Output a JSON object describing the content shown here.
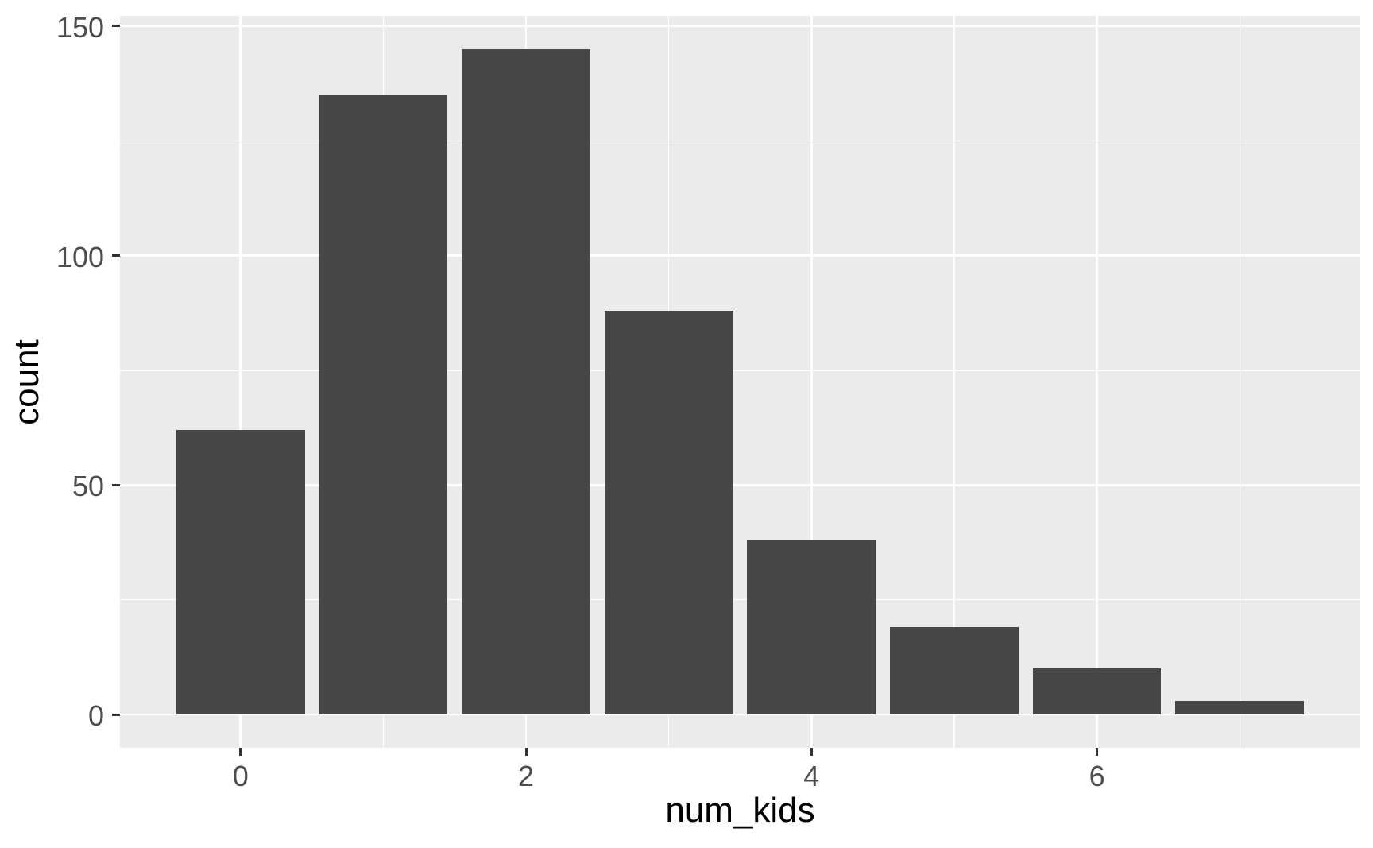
{
  "chart_data": {
    "type": "bar",
    "title": "",
    "xlabel": "num_kids",
    "ylabel": "count",
    "x": [
      0,
      1,
      2,
      3,
      4,
      5,
      6,
      7
    ],
    "values": [
      62,
      135,
      145,
      88,
      38,
      19,
      10,
      3
    ],
    "bar_width": 0.9,
    "xlim": [
      -0.845,
      7.845
    ],
    "ylim": [
      -7.25,
      152.25
    ],
    "x_major_ticks": [
      0,
      2,
      4,
      6
    ],
    "x_tick_labels": [
      "0",
      "2",
      "4",
      "6"
    ],
    "x_minor_gridlines": [
      1,
      3,
      5,
      7
    ],
    "y_major_ticks": [
      0,
      50,
      100,
      150
    ],
    "y_tick_labels": [
      "0",
      "50",
      "100",
      "150"
    ],
    "y_minor_gridlines": [
      25,
      75,
      125
    ],
    "grid": "white major and minor gridlines on grey panel",
    "legend": "none",
    "colors": {
      "bar": "#474747",
      "panel_background": "#EBEBEB",
      "gridline_major": "#FFFFFF",
      "gridline_minor": "#FFFFFF",
      "tick_label": "#4D4D4D",
      "axis_title": "#000000",
      "tick_mark": "#333333",
      "page_background": "#FFFFFF"
    }
  }
}
